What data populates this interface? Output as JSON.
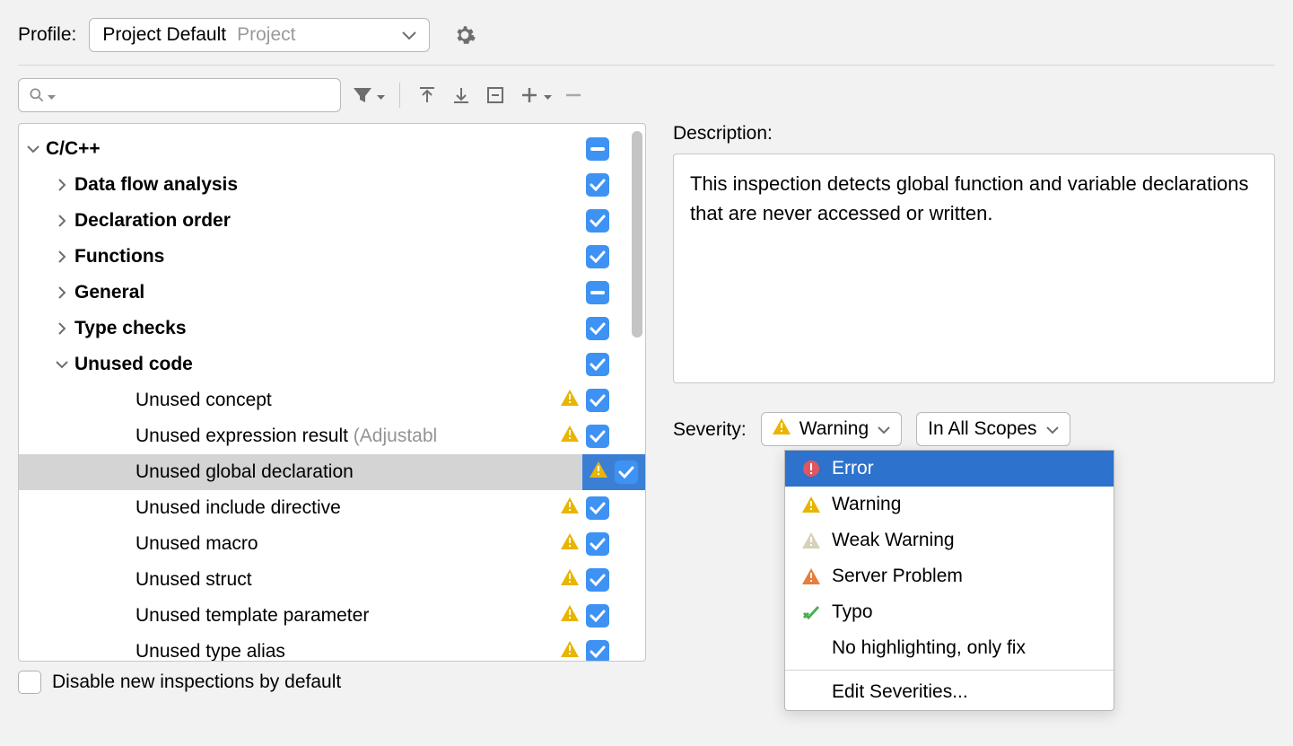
{
  "top": {
    "profile_label": "Profile:",
    "profile_name": "Project Default",
    "profile_scope": "Project"
  },
  "search": {
    "placeholder": ""
  },
  "tree": [
    {
      "label": "C/C++",
      "indent": 0,
      "bold": true,
      "arrow": "down",
      "state": "mixed"
    },
    {
      "label": "Data flow analysis",
      "indent": 1,
      "bold": true,
      "arrow": "right",
      "state": "checked"
    },
    {
      "label": "Declaration order",
      "indent": 1,
      "bold": true,
      "arrow": "right",
      "state": "checked"
    },
    {
      "label": "Functions",
      "indent": 1,
      "bold": true,
      "arrow": "right",
      "state": "checked"
    },
    {
      "label": "General",
      "indent": 1,
      "bold": true,
      "arrow": "right",
      "state": "mixed"
    },
    {
      "label": "Type checks",
      "indent": 1,
      "bold": true,
      "arrow": "right",
      "state": "checked"
    },
    {
      "label": "Unused code",
      "indent": 1,
      "bold": true,
      "arrow": "down",
      "state": "checked"
    },
    {
      "label": "Unused concept",
      "indent": 2,
      "warn": true,
      "state": "checked"
    },
    {
      "label": "Unused expression result",
      "suffix": " (Adjustabl",
      "indent": 2,
      "warn": true,
      "state": "checked"
    },
    {
      "label": "Unused global declaration",
      "indent": 2,
      "warn": true,
      "state": "checked",
      "selected": true
    },
    {
      "label": "Unused include directive",
      "indent": 2,
      "warn": true,
      "state": "checked"
    },
    {
      "label": "Unused macro",
      "indent": 2,
      "warn": true,
      "state": "checked"
    },
    {
      "label": "Unused struct",
      "indent": 2,
      "warn": true,
      "state": "checked"
    },
    {
      "label": "Unused template parameter",
      "indent": 2,
      "warn": true,
      "state": "checked"
    },
    {
      "label": "Unused type alias",
      "indent": 2,
      "warn": true,
      "state": "checked"
    }
  ],
  "disable_label": "Disable new inspections by default",
  "desc_heading": "Description:",
  "desc_text": "This inspection detects global function and variable declarations that are never accessed or written.",
  "severity": {
    "label": "Severity:",
    "current": "Warning",
    "scope": "In All Scopes"
  },
  "popup": {
    "items": [
      {
        "label": "Error",
        "icon": "error",
        "selected": true
      },
      {
        "label": "Warning",
        "icon": "warning"
      },
      {
        "label": "Weak Warning",
        "icon": "weak"
      },
      {
        "label": "Server Problem",
        "icon": "server"
      },
      {
        "label": "Typo",
        "icon": "typo"
      },
      {
        "label": "No highlighting, only fix",
        "icon": ""
      }
    ],
    "edit_label": "Edit Severities..."
  }
}
